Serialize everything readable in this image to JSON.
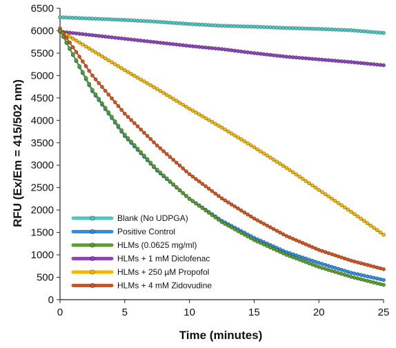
{
  "chart_data": {
    "type": "line",
    "xlabel": "Time (minutes)",
    "ylabel": "RFU (Ex/Em = 415/502 nm)",
    "xlim": [
      0,
      25
    ],
    "ylim": [
      0,
      6500
    ],
    "x_ticks": [
      0,
      5,
      10,
      15,
      20,
      25
    ],
    "y_ticks": [
      0,
      500,
      1000,
      1500,
      2000,
      2500,
      3000,
      3500,
      4000,
      4500,
      5000,
      5500,
      6000,
      6500
    ],
    "grid": false,
    "legend_position": "bottom-left",
    "markers": "circle",
    "series": [
      {
        "name": "Blank (No UDPGA)",
        "color": "#4ec6c0",
        "x": [
          0,
          2.5,
          5,
          7.5,
          10,
          12.5,
          15,
          17.5,
          20,
          22.5,
          25
        ],
        "y": [
          6300,
          6270,
          6240,
          6200,
          6150,
          6110,
          6090,
          6060,
          6040,
          6010,
          5950
        ]
      },
      {
        "name": "Positive Control",
        "color": "#2f8de4",
        "x": [
          0,
          2.5,
          5,
          7.5,
          10,
          12.5,
          15,
          17.5,
          20,
          22.5,
          25
        ],
        "y": [
          6000,
          4650,
          3650,
          2880,
          2250,
          1760,
          1380,
          1060,
          820,
          600,
          440
        ]
      },
      {
        "name": "HLMs (0.0625 mg/ml)",
        "color": "#5a9e2f",
        "x": [
          0,
          2.5,
          5,
          7.5,
          10,
          12.5,
          15,
          17.5,
          20,
          22.5,
          25
        ],
        "y": [
          6000,
          4680,
          3680,
          2900,
          2250,
          1730,
          1330,
          1000,
          730,
          510,
          330
        ]
      },
      {
        "name": "HLMs + 1 mM Diclofenac",
        "color": "#8a46b8",
        "x": [
          0,
          2.5,
          5,
          7.5,
          10,
          12.5,
          15,
          17.5,
          20,
          22.5,
          25
        ],
        "y": [
          5980,
          5900,
          5820,
          5740,
          5660,
          5590,
          5500,
          5420,
          5360,
          5300,
          5230
        ]
      },
      {
        "name": "HLMs + 250 µM Propofol",
        "color": "#f2b800",
        "x": [
          0,
          2.5,
          5,
          7.5,
          10,
          12.5,
          15,
          17.5,
          20,
          22.5,
          25
        ],
        "y": [
          6000,
          5560,
          5120,
          4700,
          4260,
          3840,
          3400,
          2940,
          2450,
          1960,
          1450
        ]
      },
      {
        "name": "HLMs + 4 mM Zidovudine",
        "color": "#d2541e",
        "x": [
          0,
          2.5,
          5,
          7.5,
          10,
          12.5,
          15,
          17.5,
          20,
          22.5,
          25
        ],
        "y": [
          6050,
          5000,
          4150,
          3440,
          2800,
          2260,
          1810,
          1420,
          1110,
          870,
          680
        ]
      }
    ]
  }
}
